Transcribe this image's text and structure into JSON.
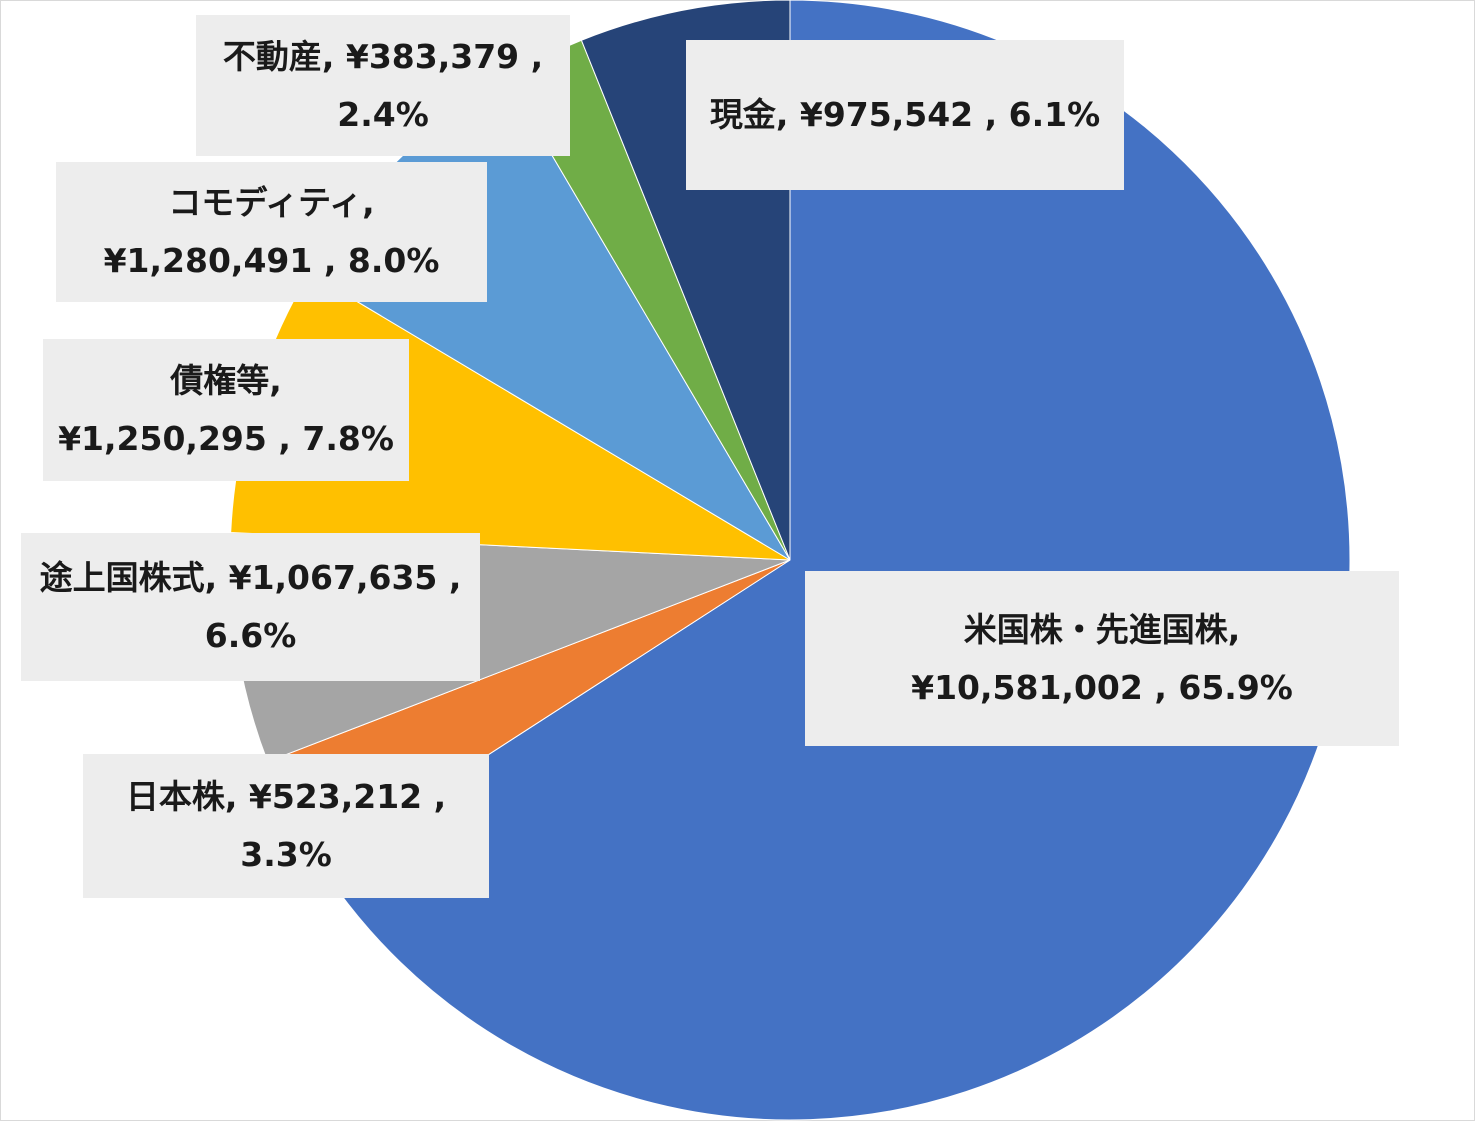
{
  "chart_data": {
    "type": "pie",
    "start": "12 o'clock",
    "direction": "clockwise",
    "slices": [
      {
        "name": "米国株・先進国株",
        "value": 10581002,
        "percent": 65.9,
        "color": "#4472c4",
        "label_line1": "米国株・先進国株,",
        "label_line2": "¥10,581,002 , 65.9%"
      },
      {
        "name": "日本株",
        "value": 523212,
        "percent": 3.3,
        "color": "#ed7d31",
        "label_line1": "日本株, ¥523,212 ,",
        "label_line2": "3.3%"
      },
      {
        "name": "途上国株式",
        "value": 1067635,
        "percent": 6.6,
        "color": "#a5a5a5",
        "label_line1": "途上国株式, ¥1,067,635 ,",
        "label_line2": "6.6%"
      },
      {
        "name": "債権等",
        "value": 1250295,
        "percent": 7.8,
        "color": "#ffc000",
        "label_line1": "債権等,",
        "label_line2": "¥1,250,295 , 7.8%"
      },
      {
        "name": "コモディティ",
        "value": 1280491,
        "percent": 8.0,
        "color": "#5b9bd5",
        "label_line1": "コモディティ,",
        "label_line2": "¥1,280,491 , 8.0%"
      },
      {
        "name": "不動産",
        "value": 383379,
        "percent": 2.4,
        "color": "#70ad47",
        "label_line1": "不動産, ¥383,379 ,",
        "label_line2": "2.4%"
      },
      {
        "name": "現金",
        "value": 975542,
        "percent": 6.1,
        "color": "#264478",
        "label_line1": "現金, ¥975,542 , 6.1%",
        "label_line2": ""
      }
    ]
  }
}
